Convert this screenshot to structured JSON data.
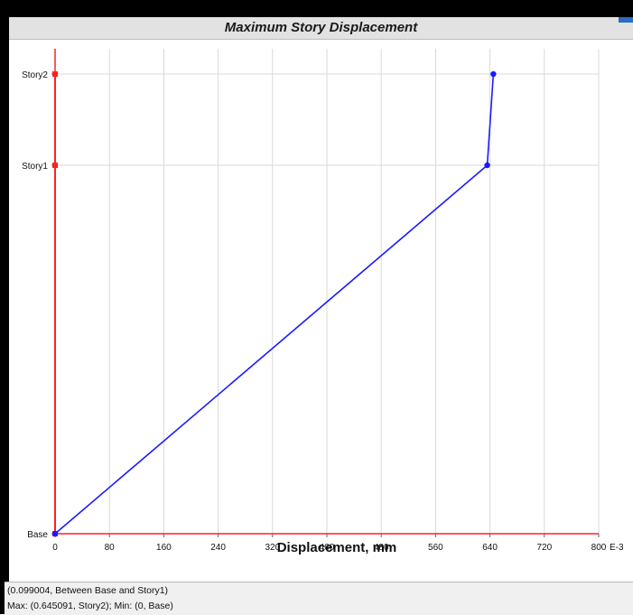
{
  "chart_data": {
    "type": "line",
    "title": "Maximum Story Displacement",
    "xlabel": "Displacement, mm",
    "ylabel": "",
    "x_unit_suffix": "E-3",
    "xlim": [
      0,
      800
    ],
    "x_ticks": [
      0,
      80,
      160,
      240,
      320,
      400,
      480,
      560,
      640,
      720,
      800
    ],
    "x_tick_labels": [
      "0",
      "80",
      "160",
      "240",
      "320",
      "400",
      "480",
      "560",
      "640",
      "720",
      "800"
    ],
    "categories": [
      "Base",
      "Story1",
      "Story2"
    ],
    "grid": true,
    "legend": "none",
    "series": [
      {
        "color": "#1a1aff",
        "values": [
          0,
          636,
          645
        ]
      },
      {
        "color": "#ff2020",
        "values": [
          0,
          0,
          0
        ]
      }
    ]
  },
  "status": {
    "line1": "(0.099004, Between Base and Story1)",
    "line2": "Max: (0.645091, Story2);   Min: (0, Base)"
  },
  "colors": {
    "frame": "#000000",
    "title_bar": "#e2e2e2",
    "grid": "#d9d9d9",
    "status_bar": "#f0f0f0"
  }
}
